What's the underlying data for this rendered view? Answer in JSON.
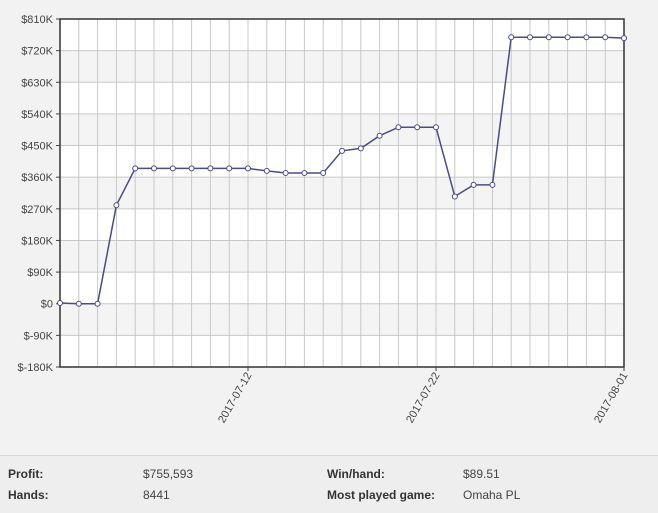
{
  "chart_data": {
    "type": "line",
    "title": "",
    "xlabel": "",
    "ylabel": "",
    "ylim": [
      -180000,
      810000
    ],
    "y_ticks": [
      {
        "value": 810000,
        "label": "$810K"
      },
      {
        "value": 720000,
        "label": "$720K"
      },
      {
        "value": 630000,
        "label": "$630K"
      },
      {
        "value": 540000,
        "label": "$540K"
      },
      {
        "value": 450000,
        "label": "$450K"
      },
      {
        "value": 360000,
        "label": "$360K"
      },
      {
        "value": 270000,
        "label": "$270K"
      },
      {
        "value": 180000,
        "label": "$180K"
      },
      {
        "value": 90000,
        "label": "$90K"
      },
      {
        "value": 0,
        "label": "$0"
      },
      {
        "value": -90000,
        "label": "$-90K"
      },
      {
        "value": -180000,
        "label": "$-180K"
      }
    ],
    "x_ticks": [
      {
        "date": "2017-07-12",
        "label": "2017-07-12"
      },
      {
        "date": "2017-07-22",
        "label": "2017-07-22"
      },
      {
        "date": "2017-08-01",
        "label": "2017-08-01"
      }
    ],
    "grid": true,
    "line_color": "#4a4a8c",
    "series": [
      {
        "x": [
          "2017-07-02",
          "2017-07-03",
          "2017-07-04",
          "2017-07-05",
          "2017-07-06",
          "2017-07-07",
          "2017-07-08",
          "2017-07-09",
          "2017-07-10",
          "2017-07-11",
          "2017-07-12",
          "2017-07-13",
          "2017-07-14",
          "2017-07-15",
          "2017-07-16",
          "2017-07-17",
          "2017-07-18",
          "2017-07-19",
          "2017-07-20",
          "2017-07-21",
          "2017-07-22",
          "2017-07-23",
          "2017-07-24",
          "2017-07-25",
          "2017-07-26",
          "2017-07-27",
          "2017-07-28",
          "2017-07-29",
          "2017-07-30",
          "2017-07-31",
          "2017-08-01"
        ],
        "values": [
          2000,
          0,
          0,
          280000,
          385000,
          385000,
          385000,
          385000,
          385000,
          385000,
          385000,
          378000,
          372000,
          372000,
          372000,
          435000,
          442000,
          478000,
          502000,
          502000,
          502000,
          305000,
          338000,
          338000,
          758000,
          758000,
          758000,
          758000,
          758000,
          758000,
          755593
        ]
      }
    ]
  },
  "stats": {
    "profit_label": "Profit:",
    "profit_value": "$755,593",
    "hands_label": "Hands:",
    "hands_value": "8441",
    "winhand_label": "Win/hand:",
    "winhand_value": "$89.51",
    "game_label": "Most played game:",
    "game_value": "Omaha PL"
  }
}
